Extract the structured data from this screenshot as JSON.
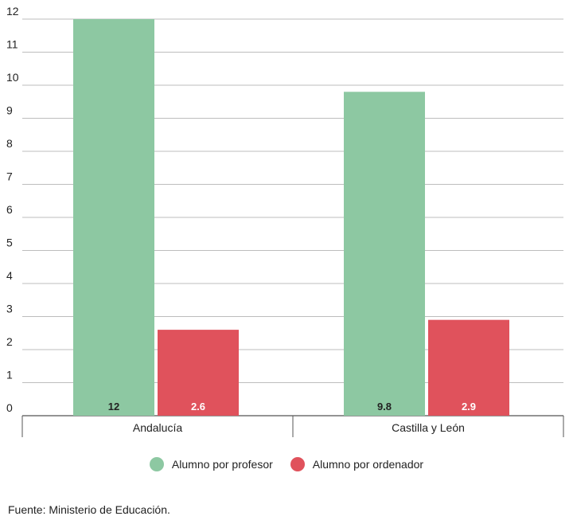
{
  "chart_data": {
    "type": "bar",
    "categories": [
      "Andalucía",
      "Castilla y León"
    ],
    "series": [
      {
        "name": "Alumno por profesor",
        "values": [
          12,
          9.8
        ],
        "labels": [
          "12",
          "9.8"
        ],
        "color": "#8dc8a2",
        "label_color": "#222222"
      },
      {
        "name": "Alumno por ordenador",
        "values": [
          2.6,
          2.9
        ],
        "labels": [
          "2.6",
          "2.9"
        ],
        "color": "#e0525c",
        "label_color": "#ffffff"
      }
    ],
    "ylim": [
      0,
      12
    ],
    "yticks": [
      "0",
      "1",
      "2",
      "3",
      "4",
      "5",
      "6",
      "7",
      "8",
      "9",
      "10",
      "11",
      "12"
    ],
    "grid": true,
    "legend_position": "bottom-center"
  },
  "source": "Fuente: Ministerio de Educación."
}
